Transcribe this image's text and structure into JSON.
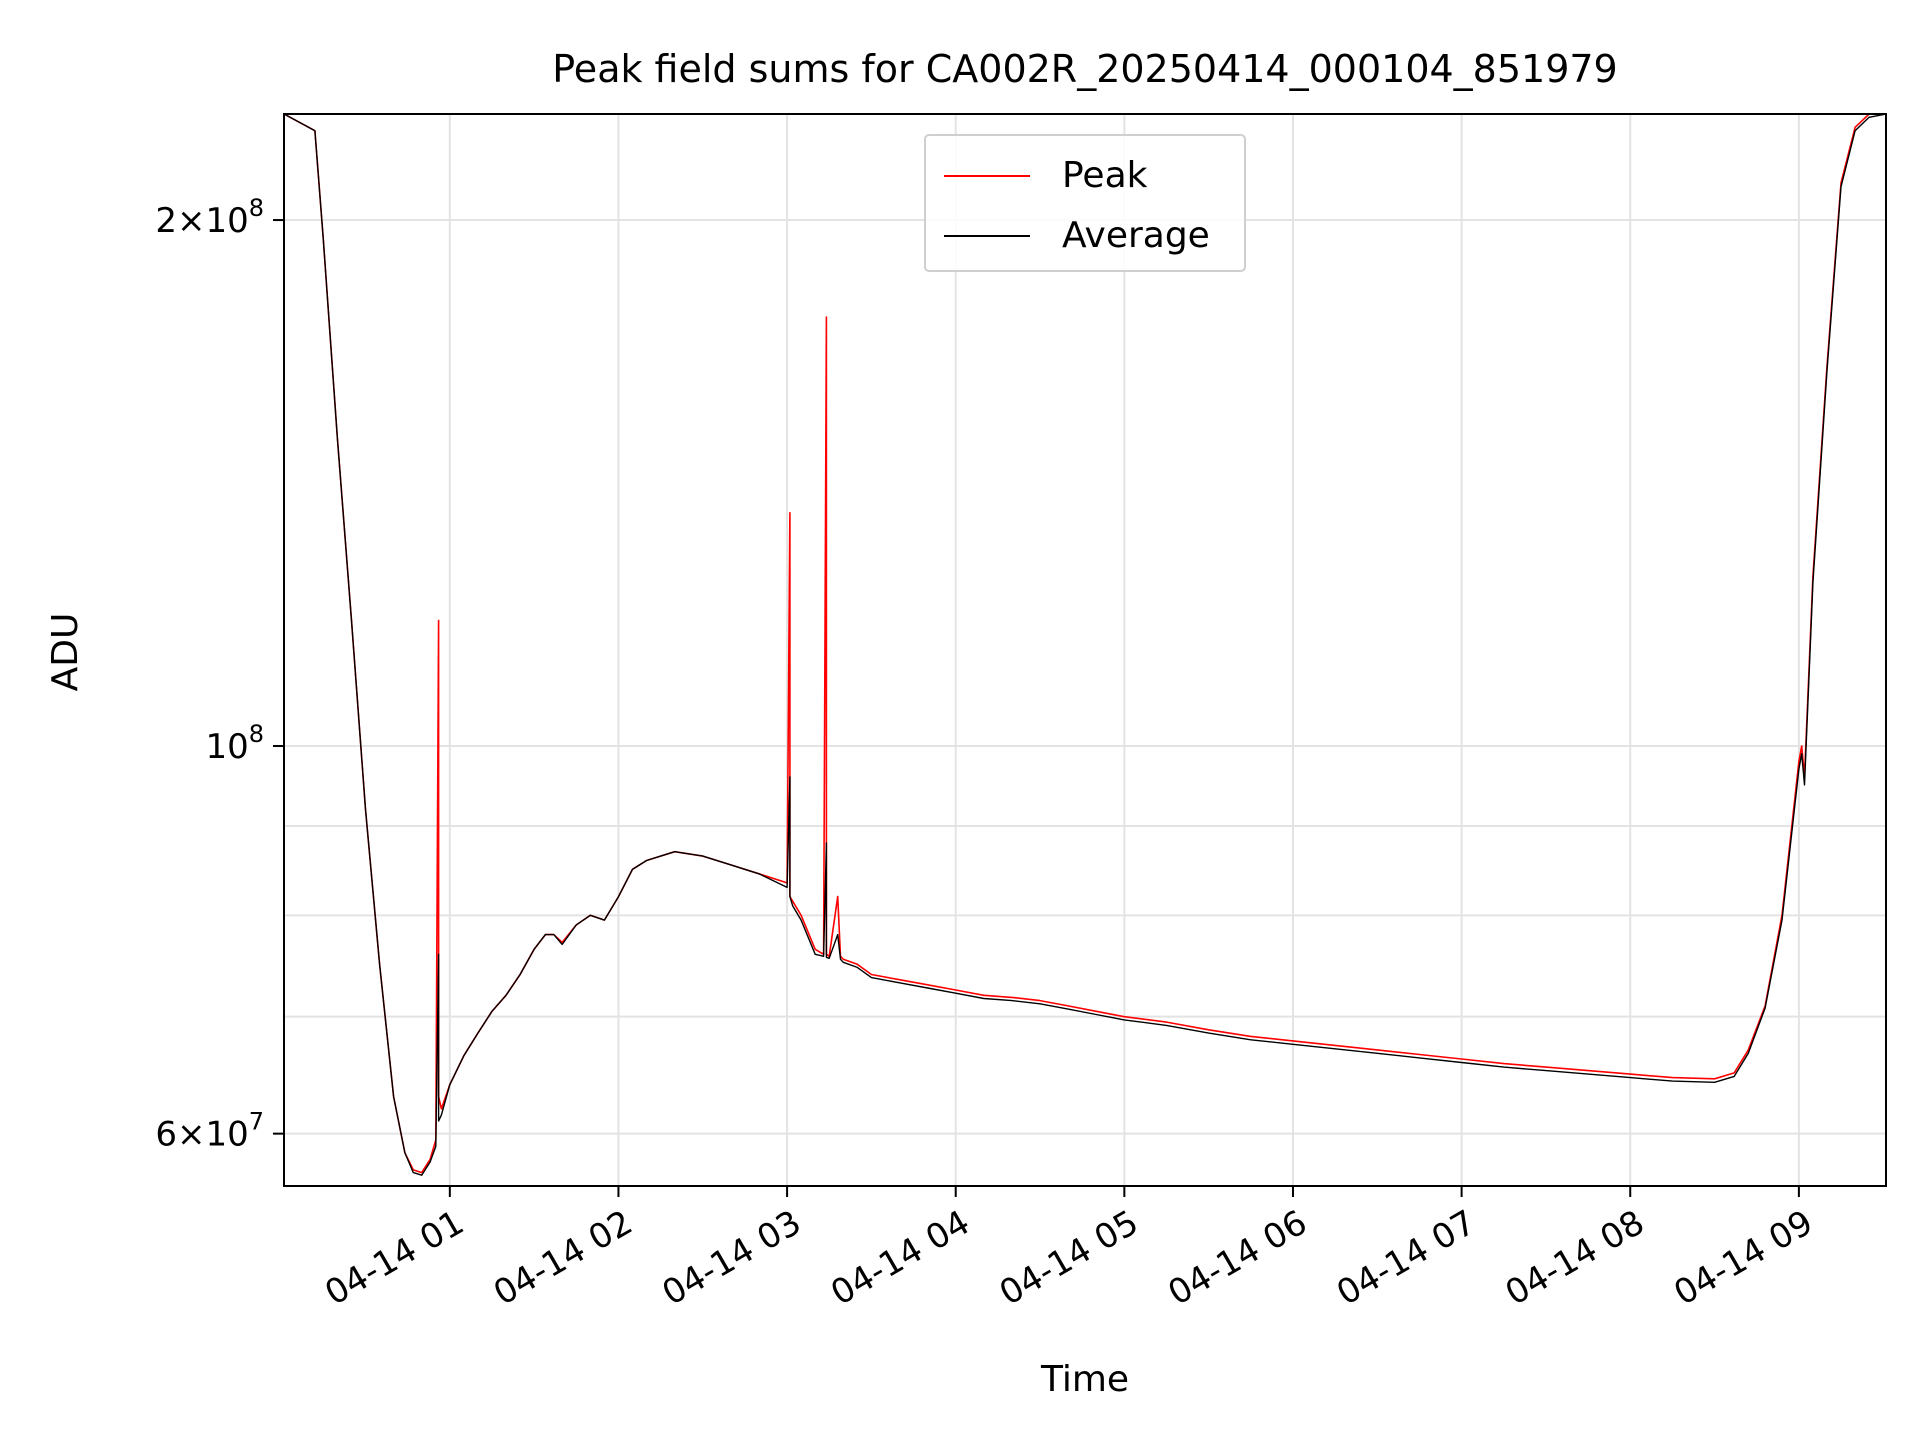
{
  "chart_data": {
    "type": "line",
    "title": "Peak field sums for CA002R_20250414_000104_851979",
    "xlabel": "Time",
    "ylabel": "ADU",
    "x_axis": {
      "type": "time",
      "range": [
        "04-14 00:01",
        "04-14 09:31"
      ],
      "tick_values": [
        "04-14 01",
        "04-14 02",
        "04-14 03",
        "04-14 04",
        "04-14 05",
        "04-14 06",
        "04-14 07",
        "04-14 08",
        "04-14 09"
      ],
      "tick_labels": [
        "04-14 01",
        "04-14 02",
        "04-14 03",
        "04-14 04",
        "04-14 05",
        "04-14 06",
        "04-14 07",
        "04-14 08",
        "04-14 09"
      ]
    },
    "y_axis": {
      "scale": "log",
      "range": [
        56000000,
        230000000
      ],
      "major_ticks": [
        {
          "value": 60000000,
          "mantissa": "6",
          "base": "10",
          "exponent": "7"
        },
        {
          "value": 100000000,
          "mantissa": "",
          "base": "10",
          "exponent": "8"
        },
        {
          "value": 200000000,
          "mantissa": "2",
          "base": "10",
          "exponent": "8"
        }
      ],
      "minor_gridlines": [
        70000000,
        80000000,
        90000000
      ]
    },
    "grid": true,
    "legend": {
      "placement": "upper center"
    },
    "series": [
      {
        "name": "Peak",
        "color": "#ff0000",
        "x": [
          "04-14 00:01",
          "04-14 00:12",
          "04-14 00:15",
          "04-14 00:20",
          "04-14 00:25",
          "04-14 00:30",
          "04-14 00:35",
          "04-14 00:40",
          "04-14 00:44",
          "04-14 00:47",
          "04-14 00:50",
          "04-14 00:53",
          "04-14 00:55",
          "04-14 00:56",
          "04-14 00:56",
          "04-14 00:57",
          "04-14 01:00",
          "04-14 01:05",
          "04-14 01:10",
          "04-14 01:15",
          "04-14 01:20",
          "04-14 01:25",
          "04-14 01:30",
          "04-14 01:34",
          "04-14 01:37",
          "04-14 01:40",
          "04-14 01:45",
          "04-14 01:50",
          "04-14 01:55",
          "04-14 02:00",
          "04-14 02:05",
          "04-14 02:10",
          "04-14 02:15",
          "04-14 02:20",
          "04-14 02:30",
          "04-14 02:40",
          "04-14 02:50",
          "04-14 03:00",
          "04-14 03:01",
          "04-14 03:01",
          "04-14 03:02",
          "04-14 03:05",
          "04-14 03:10",
          "04-14 03:13",
          "04-14 03:14",
          "04-14 03:14",
          "04-14 03:15",
          "04-14 03:18",
          "04-14 03:19",
          "04-14 03:20",
          "04-14 03:25",
          "04-14 03:30",
          "04-14 03:40",
          "04-14 03:50",
          "04-14 04:00",
          "04-14 04:10",
          "04-14 04:20",
          "04-14 04:30",
          "04-14 04:40",
          "04-14 04:50",
          "04-14 05:00",
          "04-14 05:15",
          "04-14 05:30",
          "04-14 05:45",
          "04-14 06:00",
          "04-14 06:15",
          "04-14 06:30",
          "04-14 06:45",
          "04-14 07:00",
          "04-14 07:15",
          "04-14 07:30",
          "04-14 07:45",
          "04-14 08:00",
          "04-14 08:15",
          "04-14 08:30",
          "04-14 08:37",
          "04-14 08:42",
          "04-14 08:48",
          "04-14 08:54",
          "04-14 09:00",
          "04-14 09:01",
          "04-14 09:02",
          "04-14 09:05",
          "04-14 09:10",
          "04-14 09:15",
          "04-14 09:20",
          "04-14 09:25",
          "04-14 09:31"
        ],
        "y": [
          230000000,
          225000000,
          195000000,
          150000000,
          118000000,
          92000000,
          75000000,
          63000000,
          58500000,
          57200000,
          57000000,
          58000000,
          59500000,
          118000000,
          63000000,
          62000000,
          64000000,
          66500000,
          68500000,
          70500000,
          72000000,
          74000000,
          76500000,
          78000000,
          78000000,
          77200000,
          79000000,
          80000000,
          79500000,
          82000000,
          85000000,
          86000000,
          86500000,
          87000000,
          86500000,
          85500000,
          84500000,
          83500000,
          136000000,
          82000000,
          81500000,
          80000000,
          76500000,
          76000000,
          176000000,
          76000000,
          75800000,
          82000000,
          75800000,
          75500000,
          75000000,
          74000000,
          73500000,
          73000000,
          72500000,
          72000000,
          71800000,
          71500000,
          71000000,
          70500000,
          70000000,
          69500000,
          68800000,
          68200000,
          67800000,
          67400000,
          67000000,
          66600000,
          66200000,
          65800000,
          65500000,
          65200000,
          64900000,
          64600000,
          64500000,
          65000000,
          67000000,
          71000000,
          80000000,
          98000000,
          100000000,
          96000000,
          125000000,
          165000000,
          210000000,
          226000000,
          230000000,
          230000000
        ]
      },
      {
        "name": "Average",
        "color": "#000000",
        "x": [
          "04-14 00:01",
          "04-14 00:12",
          "04-14 00:15",
          "04-14 00:20",
          "04-14 00:25",
          "04-14 00:30",
          "04-14 00:35",
          "04-14 00:40",
          "04-14 00:44",
          "04-14 00:47",
          "04-14 00:50",
          "04-14 00:53",
          "04-14 00:55",
          "04-14 00:56",
          "04-14 00:56",
          "04-14 00:57",
          "04-14 01:00",
          "04-14 01:05",
          "04-14 01:10",
          "04-14 01:15",
          "04-14 01:20",
          "04-14 01:25",
          "04-14 01:30",
          "04-14 01:34",
          "04-14 01:37",
          "04-14 01:40",
          "04-14 01:45",
          "04-14 01:50",
          "04-14 01:55",
          "04-14 02:00",
          "04-14 02:05",
          "04-14 02:10",
          "04-14 02:15",
          "04-14 02:20",
          "04-14 02:30",
          "04-14 02:40",
          "04-14 02:50",
          "04-14 03:00",
          "04-14 03:01",
          "04-14 03:01",
          "04-14 03:02",
          "04-14 03:05",
          "04-14 03:10",
          "04-14 03:13",
          "04-14 03:14",
          "04-14 03:14",
          "04-14 03:15",
          "04-14 03:18",
          "04-14 03:19",
          "04-14 03:20",
          "04-14 03:25",
          "04-14 03:30",
          "04-14 03:40",
          "04-14 03:50",
          "04-14 04:00",
          "04-14 04:10",
          "04-14 04:20",
          "04-14 04:30",
          "04-14 04:40",
          "04-14 04:50",
          "04-14 05:00",
          "04-14 05:15",
          "04-14 05:30",
          "04-14 05:45",
          "04-14 06:00",
          "04-14 06:15",
          "04-14 06:30",
          "04-14 06:45",
          "04-14 07:00",
          "04-14 07:15",
          "04-14 07:30",
          "04-14 07:45",
          "04-14 08:00",
          "04-14 08:15",
          "04-14 08:30",
          "04-14 08:37",
          "04-14 08:42",
          "04-14 08:48",
          "04-14 08:54",
          "04-14 09:00",
          "04-14 09:01",
          "04-14 09:02",
          "04-14 09:05",
          "04-14 09:10",
          "04-14 09:15",
          "04-14 09:20",
          "04-14 09:25",
          "04-14 09:31"
        ],
        "y": [
          230000000,
          225000000,
          195000000,
          150000000,
          118000000,
          92000000,
          75000000,
          63000000,
          58500000,
          57000000,
          56800000,
          57800000,
          59000000,
          76000000,
          61000000,
          61500000,
          64000000,
          66500000,
          68500000,
          70500000,
          72000000,
          74000000,
          76500000,
          78000000,
          78000000,
          77000000,
          79000000,
          80000000,
          79500000,
          82000000,
          85000000,
          86000000,
          86500000,
          87000000,
          86500000,
          85500000,
          84500000,
          83000000,
          96000000,
          82000000,
          81000000,
          79500000,
          76000000,
          75800000,
          88000000,
          75700000,
          75600000,
          78000000,
          75500000,
          75200000,
          74700000,
          73700000,
          73200000,
          72700000,
          72200000,
          71700000,
          71500000,
          71200000,
          70700000,
          70200000,
          69700000,
          69200000,
          68500000,
          67900000,
          67500000,
          67100000,
          66700000,
          66300000,
          65900000,
          65500000,
          65200000,
          64900000,
          64600000,
          64300000,
          64200000,
          64700000,
          66700000,
          70800000,
          79500000,
          97000000,
          99000000,
          95000000,
          124000000,
          164000000,
          209000000,
          225000000,
          229000000,
          230000000
        ]
      }
    ]
  }
}
